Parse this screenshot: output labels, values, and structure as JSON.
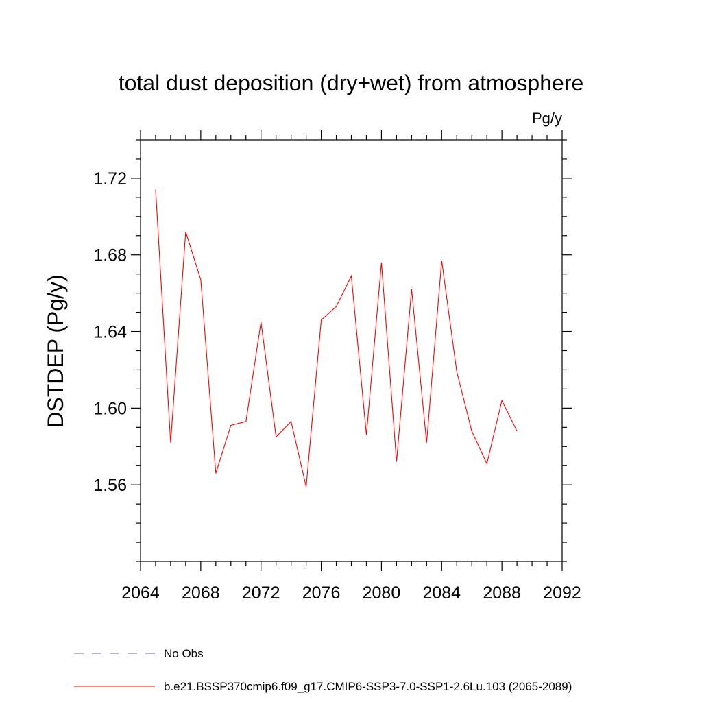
{
  "chart_data": {
    "type": "line",
    "title": "total dust deposition (dry+wet) from atmosphere",
    "units": "Pg/y",
    "ylabel": "DSTDEP  (Pg/y)",
    "xlabel": "",
    "xlim": [
      2064,
      2092
    ],
    "ylim": [
      1.52,
      1.74
    ],
    "xticks": [
      2064,
      2068,
      2072,
      2076,
      2080,
      2084,
      2088,
      2092
    ],
    "xtick_labels": [
      "2064",
      "2068",
      "2072",
      "2076",
      "2080",
      "2084",
      "2088",
      "2092"
    ],
    "yticks": [
      1.56,
      1.6,
      1.64,
      1.68,
      1.72
    ],
    "ytick_labels": [
      "1.56",
      "1.60",
      "1.64",
      "1.68",
      "1.72"
    ],
    "grid": false,
    "legend_position": "bottom",
    "series": [
      {
        "name": "b.e21.BSSP370cmip6.f09_g17.CMIP6-SSP3-7.0-SSP1-2.6Lu.103 (2065-2089)",
        "color": "#ff0000",
        "style": "solid",
        "x": [
          2065,
          2066,
          2067,
          2068,
          2069,
          2070,
          2071,
          2072,
          2073,
          2074,
          2075,
          2076,
          2077,
          2078,
          2079,
          2080,
          2081,
          2082,
          2083,
          2084,
          2085,
          2086,
          2087,
          2088,
          2089
        ],
        "y": [
          1.714,
          1.582,
          1.692,
          1.667,
          1.566,
          1.591,
          1.593,
          1.645,
          1.585,
          1.593,
          1.559,
          1.646,
          1.653,
          1.669,
          1.586,
          1.676,
          1.572,
          1.662,
          1.582,
          1.677,
          1.619,
          1.588,
          1.571,
          1.604,
          1.588
        ]
      }
    ],
    "legend": [
      {
        "label": "No Obs",
        "color": "#6b5fa8",
        "style": "dashed"
      },
      {
        "label": "b.e21.BSSP370cmip6.f09_g17.CMIP6-SSP3-7.0-SSP1-2.6Lu.103 (2065-2089)",
        "color": "#ff0000",
        "style": "solid"
      }
    ]
  }
}
